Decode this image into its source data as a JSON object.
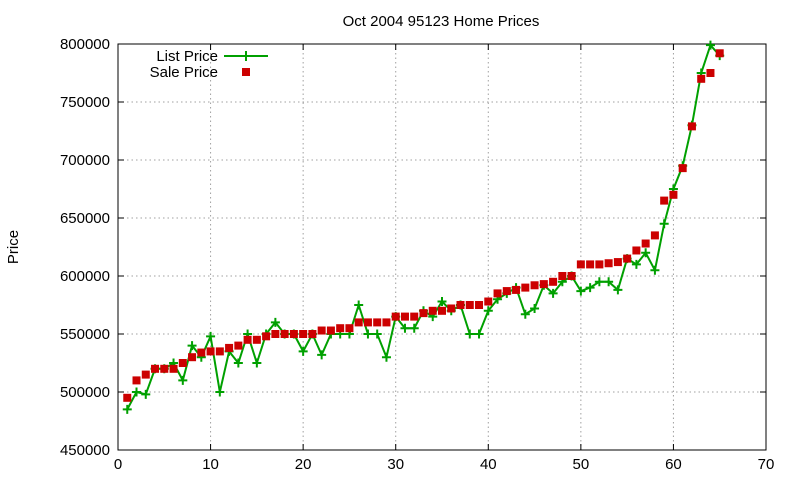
{
  "chart_data": {
    "type": "line",
    "title": "Oct 2004 95123 Home Prices",
    "xlabel": "",
    "ylabel": "Price",
    "xlim": [
      0,
      70
    ],
    "ylim": [
      450000,
      800000
    ],
    "xticks": [
      0,
      10,
      20,
      30,
      40,
      50,
      60,
      70
    ],
    "yticks": [
      450000,
      500000,
      550000,
      600000,
      650000,
      700000,
      750000,
      800000
    ],
    "xtick_labels": [
      "0",
      "10",
      "20",
      "30",
      "40",
      "50",
      "60",
      "70"
    ],
    "ytick_labels": [
      "450000",
      "500000",
      "550000",
      "600000",
      "650000",
      "700000",
      "750000",
      "800000"
    ],
    "grid": true,
    "legend": "top-left",
    "x": [
      1,
      2,
      3,
      4,
      5,
      6,
      7,
      8,
      9,
      10,
      11,
      12,
      13,
      14,
      15,
      16,
      17,
      18,
      19,
      20,
      21,
      22,
      23,
      24,
      25,
      26,
      27,
      28,
      29,
      30,
      31,
      32,
      33,
      34,
      35,
      36,
      37,
      38,
      39,
      40,
      41,
      42,
      43,
      44,
      45,
      46,
      47,
      48,
      49,
      50,
      51,
      52,
      53,
      54,
      55,
      56,
      57,
      58,
      59,
      60,
      61,
      62,
      63,
      64,
      65
    ],
    "series": [
      {
        "name": "List Price",
        "color": "#00a000",
        "marker": "plus",
        "line": true,
        "values": [
          485000,
          500000,
          498000,
          520000,
          520000,
          525000,
          510000,
          540000,
          530000,
          548000,
          500000,
          535000,
          525000,
          550000,
          525000,
          550000,
          560000,
          550000,
          550000,
          535000,
          550000,
          532000,
          550000,
          550000,
          550000,
          575000,
          550000,
          550000,
          530000,
          565000,
          555000,
          555000,
          570000,
          565000,
          578000,
          570000,
          575000,
          550000,
          550000,
          570000,
          580000,
          585000,
          590000,
          567000,
          572000,
          592000,
          585000,
          595000,
          600000,
          587000,
          590000,
          595000,
          595000,
          588000,
          615000,
          610000,
          620000,
          605000,
          645000,
          675000,
          695000,
          730000,
          775000,
          799000,
          790000
        ]
      },
      {
        "name": "Sale Price",
        "color": "#cc0000",
        "marker": "square",
        "line": false,
        "values": [
          495000,
          510000,
          515000,
          520000,
          520000,
          520000,
          525000,
          530000,
          534000,
          535000,
          535000,
          538000,
          540000,
          545000,
          545000,
          548000,
          550000,
          550000,
          550000,
          550000,
          550000,
          553000,
          553000,
          555000,
          555000,
          560000,
          560000,
          560000,
          560000,
          565000,
          565000,
          565000,
          568000,
          570000,
          570000,
          572000,
          575000,
          575000,
          575000,
          578000,
          585000,
          587000,
          588000,
          590000,
          592000,
          593000,
          595000,
          600000,
          600000,
          610000,
          610000,
          610000,
          611000,
          612000,
          615000,
          622000,
          628000,
          635000,
          665000,
          670000,
          693000,
          729000,
          770000,
          775000,
          792000
        ]
      }
    ]
  }
}
